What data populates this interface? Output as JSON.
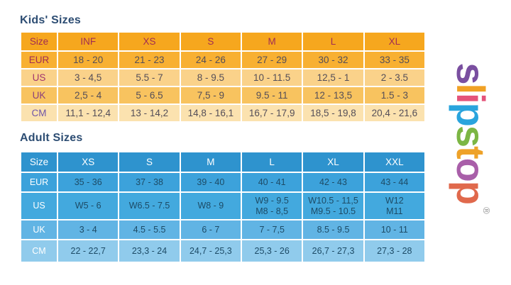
{
  "kids": {
    "title": "Kids' Sizes",
    "columns": [
      "Size",
      "INF",
      "XS",
      "S",
      "M",
      "L",
      "XL"
    ],
    "rows": [
      {
        "label": "EUR",
        "label_color": "#a12d52",
        "values": [
          "18 - 20",
          "21 - 23",
          "24 - 26",
          "27 - 29",
          "30 - 32",
          "33 - 35"
        ]
      },
      {
        "label": "US",
        "label_color": "#a1336e",
        "values": [
          "3 - 4,5",
          "5.5 - 7",
          "8 - 9.5",
          "10 - 11.5",
          "12,5 - 1",
          "2 - 3.5"
        ]
      },
      {
        "label": "UK",
        "label_color": "#8b3f7d",
        "values": [
          "2,5 - 4",
          "5 - 6.5",
          "7,5 - 9",
          "9.5 - 11",
          "12 - 13,5",
          "1.5 - 3"
        ]
      },
      {
        "label": "CM",
        "label_color": "#6f55a8",
        "values": [
          "11,1 - 12,4",
          "13 - 14,2",
          "14,8 - 16,1",
          "16,7 - 17,9",
          "18,5 - 19,8",
          "20,4 - 21,6"
        ]
      }
    ],
    "palette": {
      "header": "#f6a71e",
      "row_eur": "#f8b032",
      "row_us": "#fad28a",
      "row_uk": "#f8c35f",
      "row_cm": "#fbe2af",
      "value_text": "#544e58"
    }
  },
  "adult": {
    "title": "Adult Sizes",
    "columns": [
      "Size",
      "XS",
      "S",
      "M",
      "L",
      "XL",
      "XXL"
    ],
    "rows": [
      {
        "label": "EUR",
        "label_color": "#ffffff",
        "values": [
          "35 - 36",
          "37 - 38",
          "39 - 40",
          "40 - 41",
          "42 - 43",
          "43 - 44"
        ]
      },
      {
        "label": "US",
        "label_color": "#ffffff",
        "values": [
          "W5 - 6",
          "W6.5 - 7.5",
          "W8 - 9",
          "W9 - 9.5\nM8 - 8,5",
          "W10.5 - 11,5\nM9.5 - 10.5",
          "W12\nM11"
        ]
      },
      {
        "label": "UK",
        "label_color": "#ffffff",
        "values": [
          "3 - 4",
          "4.5 - 5.5",
          "6 - 7",
          "7 - 7,5",
          "8.5 - 9.5",
          "10 - 11"
        ]
      },
      {
        "label": "CM",
        "label_color": "#ffffff",
        "values": [
          "22 - 22,7",
          "23,3 - 24",
          "24,7 - 25,3",
          "25,3 - 26",
          "26,7 - 27,3",
          "27,3 - 28"
        ]
      }
    ],
    "palette": {
      "header": "#2e93ce",
      "row_eur": "#3ca2db",
      "row_us": "#43a9de",
      "row_uk": "#61b4e4",
      "row_cm": "#90cbec",
      "value_text": "#1d4b66",
      "header_text": "#ffffff"
    }
  },
  "logo": {
    "text": "slipstop",
    "registered": "®",
    "letters": [
      {
        "char": "s",
        "color": "#7a4fa0"
      },
      {
        "char": "l",
        "color": "#f0a125"
      },
      {
        "char": "i",
        "color": "#e4537a"
      },
      {
        "char": "p",
        "color": "#29a4dd"
      },
      {
        "char": "s",
        "color": "#7cb644"
      },
      {
        "char": "t",
        "color": "#eea229"
      },
      {
        "char": "o",
        "color": "#a95fa9"
      },
      {
        "char": "p",
        "color": "#e0694c"
      }
    ]
  },
  "chart_data": [
    {
      "type": "table",
      "title": "Kids' Sizes",
      "columns": [
        "Size",
        "INF",
        "XS",
        "S",
        "M",
        "L",
        "XL"
      ],
      "rows": [
        [
          "EUR",
          "18 - 20",
          "21 - 23",
          "24 - 26",
          "27 - 29",
          "30 - 32",
          "33 - 35"
        ],
        [
          "US",
          "3 - 4,5",
          "5.5 - 7",
          "8 - 9.5",
          "10 - 11.5",
          "12,5 - 1",
          "2 - 3.5"
        ],
        [
          "UK",
          "2,5 - 4",
          "5 - 6.5",
          "7,5 - 9",
          "9.5 - 11",
          "12 - 13,5",
          "1.5 - 3"
        ],
        [
          "CM",
          "11,1 - 12,4",
          "13 - 14,2",
          "14,8 - 16,1",
          "16,7 - 17,9",
          "18,5 - 19,8",
          "20,4 - 21,6"
        ]
      ]
    },
    {
      "type": "table",
      "title": "Adult Sizes",
      "columns": [
        "Size",
        "XS",
        "S",
        "M",
        "L",
        "XL",
        "XXL"
      ],
      "rows": [
        [
          "EUR",
          "35 - 36",
          "37 - 38",
          "39 - 40",
          "40 - 41",
          "42 - 43",
          "43 - 44"
        ],
        [
          "US",
          "W5 - 6",
          "W6.5 - 7.5",
          "W8 - 9",
          "W9 - 9.5 / M8 - 8,5",
          "W10.5 - 11,5 / M9.5 - 10.5",
          "W12 / M11"
        ],
        [
          "UK",
          "3 - 4",
          "4.5 - 5.5",
          "6 - 7",
          "7 - 7,5",
          "8.5 - 9.5",
          "10 - 11"
        ],
        [
          "CM",
          "22 - 22,7",
          "23,3 - 24",
          "24,7 - 25,3",
          "25,3 - 26",
          "26,7 - 27,3",
          "27,3 - 28"
        ]
      ]
    }
  ]
}
